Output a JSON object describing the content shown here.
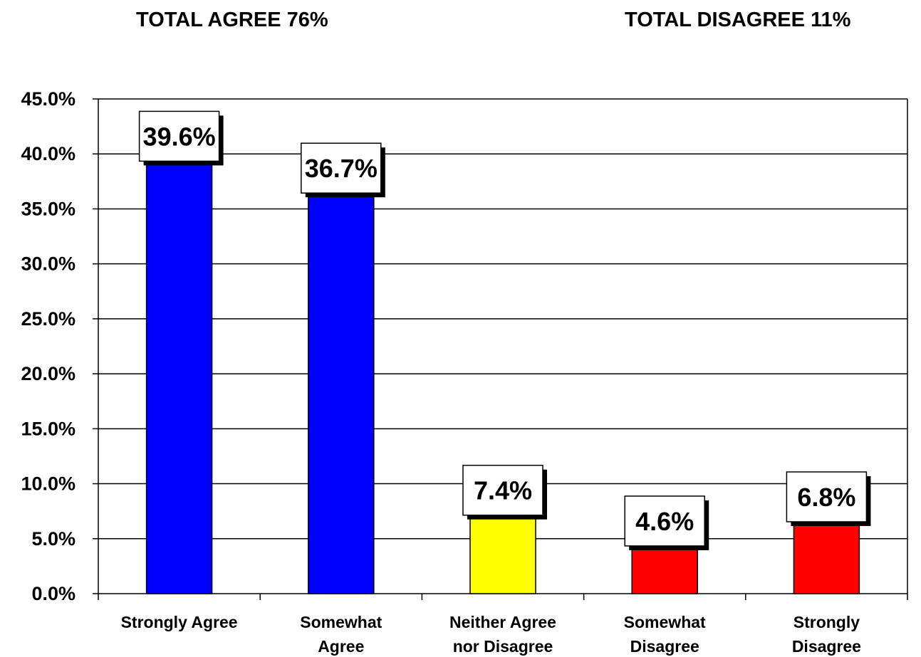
{
  "headlines": {
    "total_agree": "TOTAL AGREE 76%",
    "total_disagree": "TOTAL DISAGREE 11%"
  },
  "chart_data": {
    "type": "bar",
    "title": "",
    "xlabel": "",
    "ylabel": "",
    "categories": [
      [
        "Strongly Agree"
      ],
      [
        "Somewhat",
        "Agree"
      ],
      [
        "Neither Agree",
        "nor Disagree"
      ],
      [
        "Somewhat",
        "Disagree"
      ],
      [
        "Strongly",
        "Disagree"
      ]
    ],
    "values": [
      39.6,
      36.7,
      7.4,
      4.6,
      6.8
    ],
    "data_labels": [
      "39.6%",
      "36.7%",
      "7.4%",
      "4.6%",
      "6.8%"
    ],
    "bar_colors": [
      "#0000ff",
      "#0000ff",
      "#ffff00",
      "#ff0000",
      "#ff0000"
    ],
    "ylim": [
      0,
      45
    ],
    "y_ticks": [
      "0.0%",
      "5.0%",
      "10.0%",
      "15.0%",
      "20.0%",
      "25.0%",
      "30.0%",
      "35.0%",
      "40.0%",
      "45.0%"
    ],
    "y_tick_values": [
      0,
      5,
      10,
      15,
      20,
      25,
      30,
      35,
      40,
      45
    ],
    "grid": true,
    "legend": "none"
  }
}
